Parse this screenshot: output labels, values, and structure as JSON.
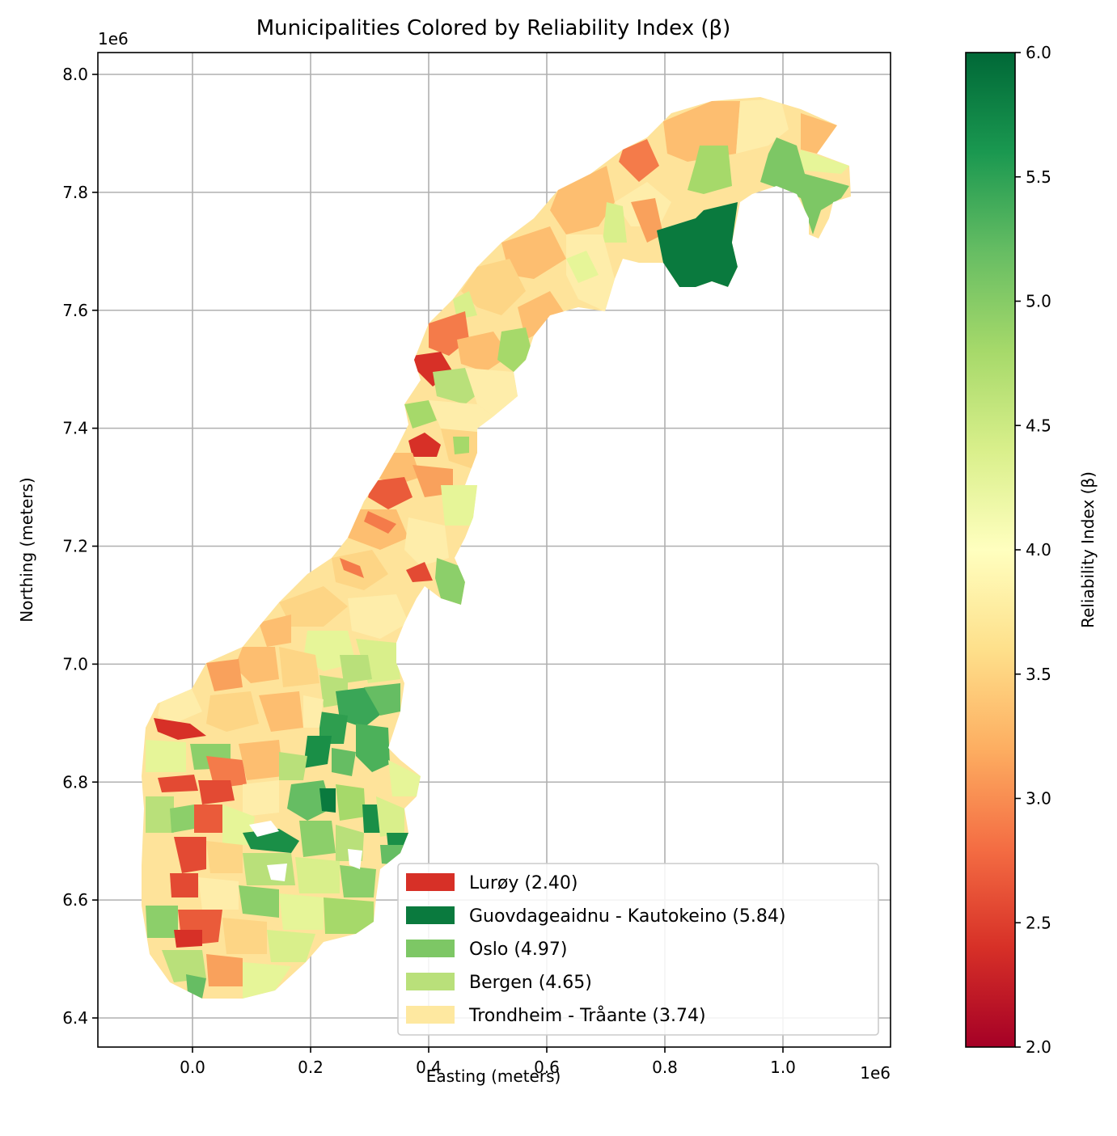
{
  "title": "Municipalities Colored by Reliability Index (β)",
  "x_axis": {
    "label": "Easting (meters)",
    "offset_label": "1e6",
    "ticks": [
      "0.0",
      "0.2",
      "0.4",
      "0.6",
      "0.8",
      "1.0"
    ]
  },
  "y_axis": {
    "label": "Northing (meters)",
    "offset_label": "1e6",
    "ticks": [
      "6.4",
      "6.6",
      "6.8",
      "7.0",
      "7.2",
      "7.4",
      "7.6",
      "7.8",
      "8.0"
    ]
  },
  "colorbar": {
    "label": "Reliability Index (β)",
    "colormap": "RdYlGn",
    "range": [
      2.0,
      6.0
    ],
    "ticks": [
      "2.0",
      "2.5",
      "3.0",
      "3.5",
      "4.0",
      "4.5",
      "5.0",
      "5.5",
      "6.0"
    ],
    "stops": [
      "#a50026",
      "#d73027",
      "#f46d43",
      "#fdae61",
      "#fee08b",
      "#ffffbf",
      "#d9ef8b",
      "#a6d96a",
      "#66bd63",
      "#1a9850",
      "#006837"
    ]
  },
  "legend": {
    "items": [
      {
        "label": "Lurøy (2.40)",
        "color": "#d73027"
      },
      {
        "label": "Guovdageaidnu - Kautokeino (5.84)",
        "color": "#0a7a3e"
      },
      {
        "label": "Oslo (4.97)",
        "color": "#7dc765"
      },
      {
        "label": "Bergen (4.65)",
        "color": "#b9e07a"
      },
      {
        "label": "Trondheim - Tråante (3.74)",
        "color": "#fee8a0"
      }
    ]
  },
  "chart_data": {
    "type": "choropleth",
    "title": "Municipalities Colored by Reliability Index (β)",
    "xlabel": "Easting (meters)",
    "ylabel": "Northing (meters)",
    "xlim": [
      -150000,
      1180000
    ],
    "ylim": [
      6350000,
      8040000
    ],
    "grid": true,
    "legend_position": "lower right",
    "colorbar_label": "Reliability Index (β)",
    "color_range": [
      2.0,
      6.0
    ],
    "highlighted": [
      {
        "name": "Lurøy",
        "value": 2.4
      },
      {
        "name": "Guovdageaidnu - Kautokeino",
        "value": 5.84
      },
      {
        "name": "Oslo",
        "value": 4.97
      },
      {
        "name": "Bergen",
        "value": 4.65
      },
      {
        "name": "Trondheim - Tråante",
        "value": 3.74
      }
    ]
  }
}
